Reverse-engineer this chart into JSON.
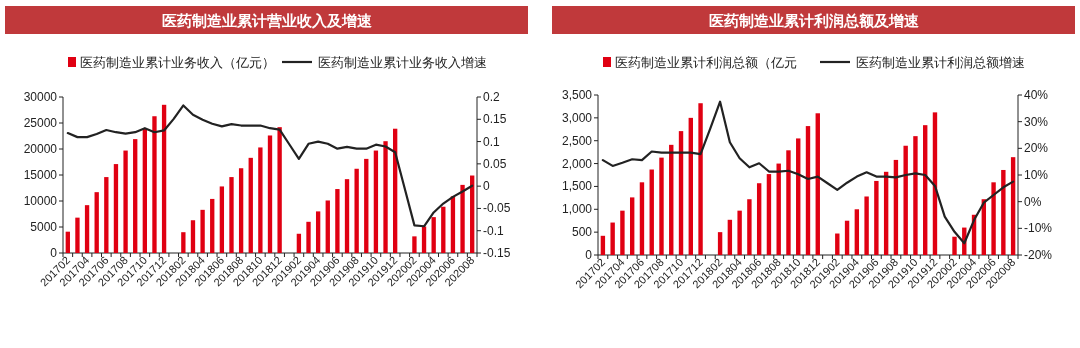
{
  "chart_data": [
    {
      "type": "bar",
      "title": "医药制造业累计营业收入及增速",
      "legend": "top",
      "categories": [
        "201702",
        null,
        "201704",
        null,
        "201706",
        null,
        "201708",
        null,
        "201710",
        null,
        "201712",
        null,
        "201802",
        null,
        "201804",
        null,
        "201806",
        null,
        "201808",
        null,
        "201810",
        null,
        "201812",
        null,
        "201902",
        null,
        "201904",
        null,
        "201906",
        null,
        "201908",
        null,
        "201910",
        null,
        "201912",
        null,
        "202002",
        null,
        "202004",
        null,
        "202006",
        null,
        "202008"
      ],
      "series": [
        {
          "name": "医药制造业累计业务收入（亿元）",
          "color": "#e00012",
          "values": [
            4100,
            6800,
            9200,
            11700,
            14600,
            17100,
            19700,
            21900,
            24000,
            26300,
            28500,
            null,
            4000,
            6300,
            8300,
            10400,
            12800,
            14600,
            16300,
            18300,
            20300,
            22600,
            24200,
            null,
            3700,
            6000,
            8000,
            10100,
            12300,
            14200,
            16200,
            18100,
            19700,
            21500,
            23900,
            null,
            3200,
            5100,
            6900,
            8900,
            10900,
            13100,
            14900
          ]
        },
        {
          "name": "医药制造业累计业务收入增速",
          "type": "line",
          "axis": "y2",
          "color": "#222222",
          "values": [
            0.119,
            0.11,
            0.11,
            0.117,
            0.126,
            0.121,
            0.118,
            0.121,
            0.13,
            0.121,
            0.125,
            0.151,
            0.181,
            0.16,
            0.149,
            0.14,
            0.134,
            0.139,
            0.136,
            0.136,
            0.136,
            0.13,
            0.127,
            0.094,
            0.061,
            0.095,
            0.1,
            0.095,
            0.084,
            0.088,
            0.084,
            0.084,
            0.093,
            0.089,
            0.076,
            -0.006,
            -0.088,
            -0.09,
            -0.059,
            -0.039,
            -0.024,
            -0.012,
            0.001
          ]
        }
      ],
      "ylim": [
        0,
        30000
      ],
      "yticks": [
        0,
        5000,
        10000,
        15000,
        20000,
        25000,
        30000
      ],
      "y2lim": [
        -0.15,
        0.2
      ],
      "y2ticks": [
        -0.15,
        -0.1,
        -0.05,
        0,
        0.05,
        0.1,
        0.15,
        0.2
      ]
    },
    {
      "type": "bar",
      "title": "医药制造业累计利润总额及增速",
      "legend": "top",
      "categories": [
        "201702",
        null,
        "201704",
        null,
        "201706",
        null,
        "201708",
        null,
        "201710",
        null,
        "201712",
        null,
        "201802",
        null,
        "201804",
        null,
        "201806",
        null,
        "201808",
        null,
        "201810",
        null,
        "201812",
        null,
        "201902",
        null,
        "201904",
        null,
        "201906",
        null,
        "201908",
        null,
        "201910",
        null,
        "201912",
        null,
        "202002",
        null,
        "202004",
        null,
        "202006",
        null,
        "202008"
      ],
      "series": [
        {
          "name": "医药制造业累计利润总额（亿元",
          "color": "#e00012",
          "values": [
            420,
            710,
            970,
            1260,
            1590,
            1870,
            2130,
            2410,
            2710,
            3000,
            3320,
            null,
            500,
            770,
            970,
            1220,
            1570,
            1770,
            2000,
            2290,
            2550,
            2820,
            3100,
            null,
            470,
            750,
            1000,
            1280,
            1620,
            1820,
            2080,
            2390,
            2600,
            2840,
            3120,
            null,
            400,
            600,
            880,
            1220,
            1590,
            1860,
            2140
          ]
        },
        {
          "name": "医药制造业累计利润总额增速",
          "type": "line",
          "axis": "y2",
          "color": "#222222",
          "values": [
            15.6,
            13.4,
            14.6,
            15.9,
            15.6,
            18.8,
            18.4,
            18.4,
            18.4,
            18.4,
            17.8,
            27.5,
            37.5,
            22.3,
            16.3,
            12.9,
            14.4,
            11.3,
            11.3,
            11.6,
            10.3,
            8.5,
            9.4,
            6.9,
            4.4,
            7.1,
            9.4,
            11,
            9.4,
            9.4,
            9.1,
            10,
            10.6,
            10,
            5.9,
            -5.6,
            -11.3,
            -15.6,
            -6.9,
            -0.4,
            2.5,
            5.4,
            7.5
          ]
        }
      ],
      "ylim": [
        0,
        3500
      ],
      "yticks": [
        0,
        {
          "value": 500,
          "label": "500"
        },
        {
          "value": 1000,
          "label": "1,000"
        },
        {
          "value": 1500,
          "label": "1,500"
        },
        {
          "value": 2000,
          "label": "2,000"
        },
        {
          "value": 2500,
          "label": "2,500"
        },
        {
          "value": 3000,
          "label": "3,000"
        },
        {
          "value": 3500,
          "label": "3,500"
        }
      ],
      "y2lim": [
        -20,
        40
      ],
      "y2ticks": [
        {
          "value": -20,
          "label": "-20%"
        },
        {
          "value": -10,
          "label": "-10%"
        },
        {
          "value": 0,
          "label": "0%"
        },
        {
          "value": 10,
          "label": "10%"
        },
        {
          "value": 20,
          "label": "20%"
        },
        {
          "value": 30,
          "label": "30%"
        },
        {
          "value": 40,
          "label": "40%"
        }
      ]
    }
  ]
}
